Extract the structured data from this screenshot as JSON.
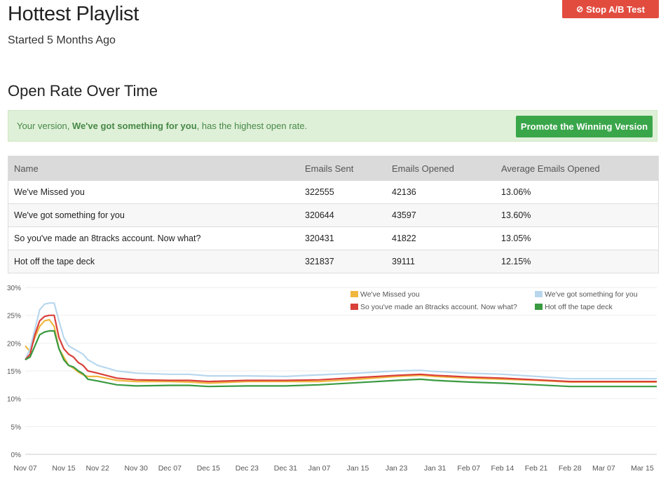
{
  "header": {
    "title": "Hottest Playlist",
    "subtitle": "Started 5 Months Ago",
    "stop_button": "Stop A/B Test",
    "stop_icon": "⊘"
  },
  "section": {
    "title": "Open Rate Over Time"
  },
  "alert": {
    "prefix": "Your version, ",
    "winner": "We've got something for you",
    "suffix": ", has the highest open rate.",
    "button": "Promote the Winning Version"
  },
  "table": {
    "headers": [
      "Name",
      "Emails Sent",
      "Emails Opened",
      "Average Emails Opened"
    ],
    "rows": [
      [
        "We've Missed you",
        "322555",
        "42136",
        "13.06%"
      ],
      [
        "We've got something for you",
        "320644",
        "43597",
        "13.60%"
      ],
      [
        "So you've made an 8tracks account. Now what?",
        "320431",
        "41822",
        "13.05%"
      ],
      [
        "Hot off the tape deck",
        "321837",
        "39111",
        "12.15%"
      ]
    ]
  },
  "colors": {
    "stop": "#e24c3f",
    "promote": "#3aa64a",
    "alert_bg": "#dff0d8",
    "alert_text": "#468847"
  },
  "chart_data": {
    "type": "line",
    "title": "",
    "xlabel": "",
    "ylabel": "",
    "ylim": [
      0,
      30
    ],
    "yticks": [
      "0%",
      "5%",
      "10%",
      "15%",
      "20%",
      "25%",
      "30%"
    ],
    "xticks": [
      "Nov 07",
      "Nov 15",
      "Nov 22",
      "Nov 30",
      "Dec 07",
      "Dec 15",
      "Dec 23",
      "Dec 31",
      "Jan 07",
      "Jan 15",
      "Jan 23",
      "Jan 31",
      "Feb 07",
      "Feb 14",
      "Feb 21",
      "Feb 28",
      "Mar 07",
      "Mar 15"
    ],
    "x": [
      "Nov 07",
      "Nov 08",
      "Nov 09",
      "Nov 10",
      "Nov 11",
      "Nov 12",
      "Nov 13",
      "Nov 14",
      "Nov 15",
      "Nov 16",
      "Nov 17",
      "Nov 18",
      "Nov 19",
      "Nov 20",
      "Nov 22",
      "Nov 26",
      "Nov 30",
      "Dec 07",
      "Dec 11",
      "Dec 15",
      "Dec 23",
      "Dec 31",
      "Jan 07",
      "Jan 15",
      "Jan 23",
      "Jan 28",
      "Jan 31",
      "Feb 07",
      "Feb 14",
      "Feb 21",
      "Feb 28",
      "Mar 07",
      "Mar 15",
      "Mar 18"
    ],
    "legend_position": "top-right",
    "grid": true,
    "series": [
      {
        "name": "We've Missed you",
        "color": "#f0b73f",
        "values": [
          19.5,
          18.5,
          21,
          23,
          24,
          24.2,
          23,
          19,
          17.5,
          16,
          15.5,
          14.8,
          14.3,
          14,
          14,
          13.3,
          13.1,
          13.1,
          13.0,
          12.8,
          13.1,
          13.1,
          13.1,
          13.5,
          14.0,
          14.2,
          14.0,
          13.7,
          13.5,
          13.3,
          13.0,
          13.0,
          13.0,
          13.0
        ]
      },
      {
        "name": "We've got something for you",
        "color": "#b8d7ee",
        "values": [
          17,
          19,
          22.5,
          26,
          27,
          27.2,
          27.2,
          24,
          21,
          19.5,
          19,
          18.5,
          18,
          17,
          16,
          15,
          14.6,
          14.4,
          14.4,
          14.1,
          14.1,
          14.0,
          14.3,
          14.6,
          15.0,
          15.1,
          14.9,
          14.6,
          14.4,
          14.0,
          13.6,
          13.6,
          13.6,
          13.6
        ]
      },
      {
        "name": "So you've made an 8tracks account. Now what?",
        "color": "#d9403a",
        "values": [
          17,
          18,
          21.5,
          24,
          24.8,
          25,
          25,
          21,
          19,
          18,
          17.5,
          16.5,
          16,
          15,
          14.6,
          13.7,
          13.4,
          13.3,
          13.3,
          13.1,
          13.3,
          13.3,
          13.4,
          13.8,
          14.2,
          14.4,
          14.2,
          13.9,
          13.7,
          13.4,
          13.1,
          13.1,
          13.1,
          13.1
        ]
      },
      {
        "name": "Hot off the tape deck",
        "color": "#3a9a41",
        "values": [
          17,
          17.5,
          19.5,
          21.5,
          22,
          22.2,
          22.2,
          19,
          17,
          16,
          15.7,
          15,
          14.5,
          13.5,
          13.2,
          12.5,
          12.3,
          12.4,
          12.4,
          12.2,
          12.3,
          12.3,
          12.5,
          12.9,
          13.3,
          13.5,
          13.3,
          13.0,
          12.8,
          12.5,
          12.2,
          12.2,
          12.2,
          12.2
        ]
      }
    ]
  }
}
